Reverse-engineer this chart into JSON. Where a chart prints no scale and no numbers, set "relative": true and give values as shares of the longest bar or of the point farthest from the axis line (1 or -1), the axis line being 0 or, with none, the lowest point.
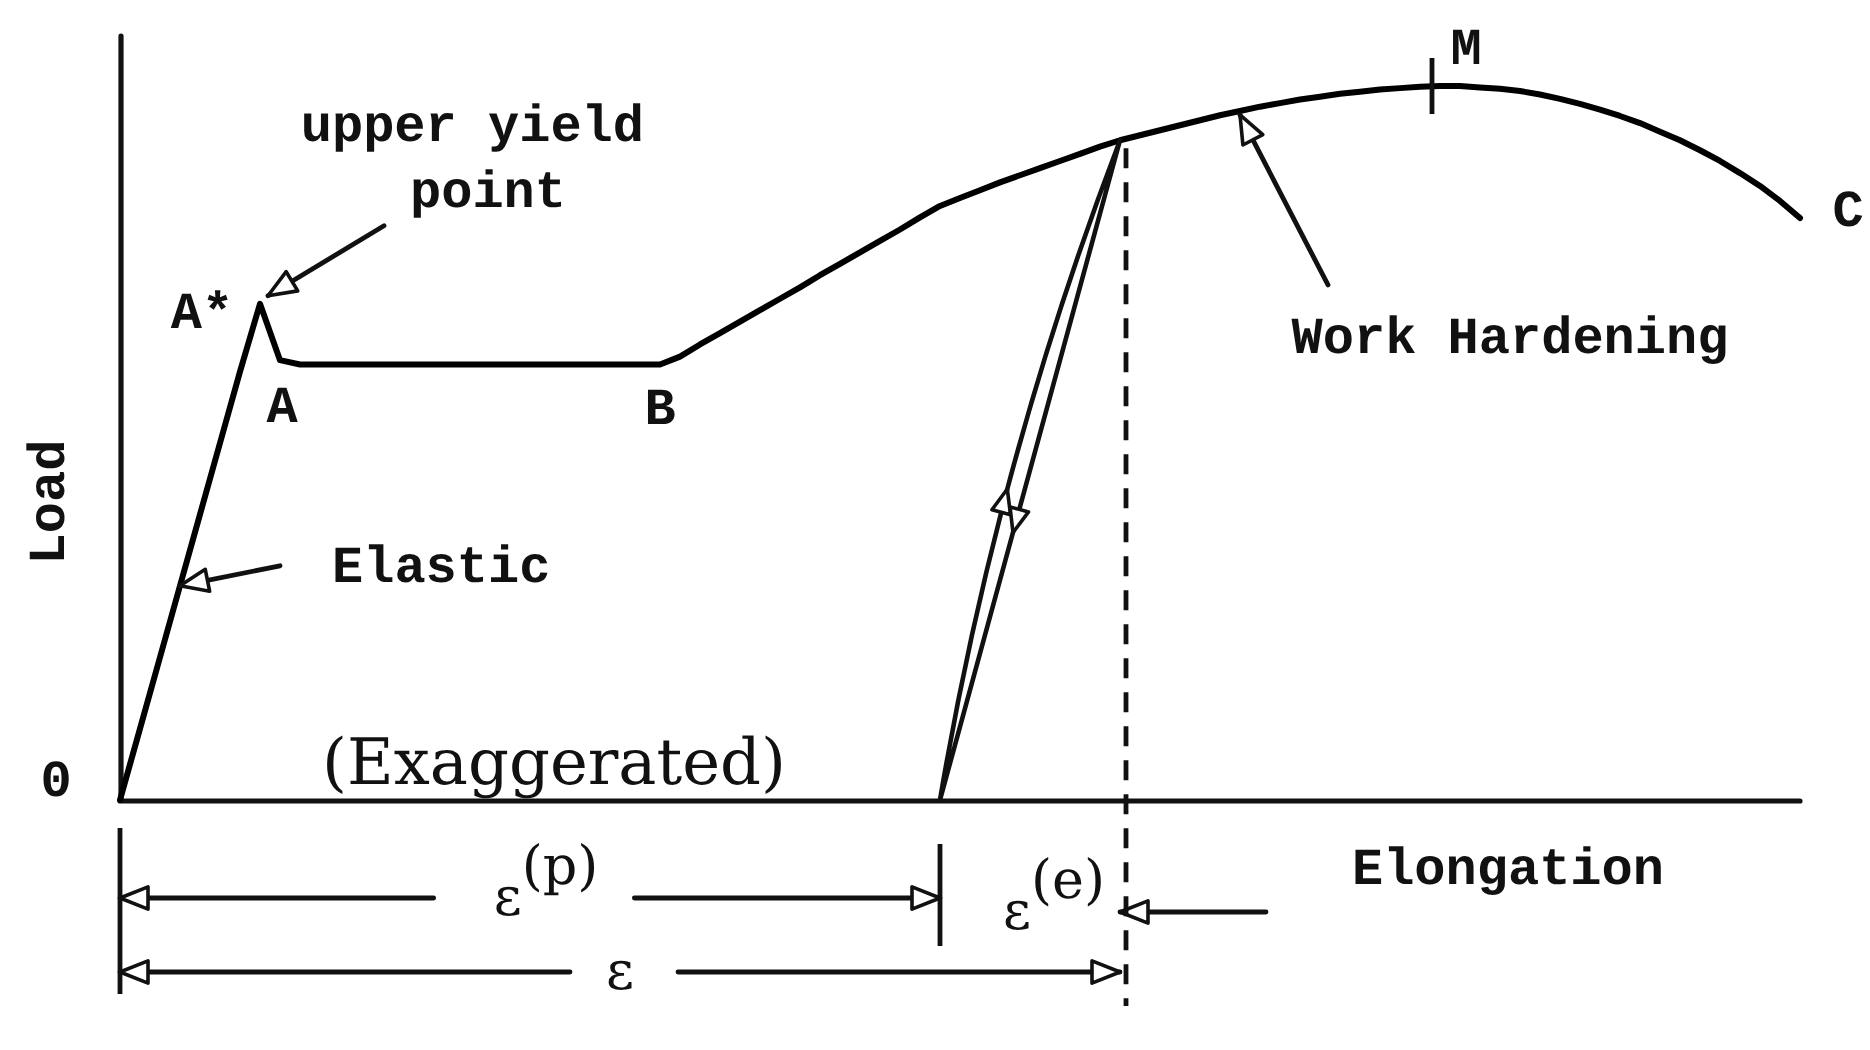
{
  "chart_data": {
    "type": "line",
    "xlabel": "Elongation",
    "ylabel": "Load",
    "relative": true,
    "categories": [
      null,
      null,
      null,
      null,
      null,
      null,
      null,
      null,
      null,
      null,
      null,
      null,
      null,
      null,
      null,
      null,
      null,
      null,
      null,
      null,
      null,
      null,
      null,
      null,
      null,
      null,
      null,
      null,
      null,
      null,
      null,
      null,
      null,
      null,
      null,
      null,
      null,
      null,
      null,
      null,
      null,
      null,
      null,
      null,
      null,
      null,
      null,
      null,
      null,
      null,
      null,
      null,
      null,
      null,
      null,
      null,
      null,
      null,
      null,
      null,
      null,
      null,
      null,
      null,
      null,
      null,
      null,
      null,
      null,
      null,
      null,
      null,
      null,
      null,
      null,
      null,
      null,
      null,
      null,
      null,
      null,
      null,
      null,
      null,
      null
    ],
    "series": [
      {
        "color": "#000000",
        "values": [
          0,
          0.1,
          0.2,
          0.3,
          0.4,
          0.5,
          0.6,
          0.695,
          0.616,
          0.61,
          0.61,
          0.61,
          0.61,
          0.61,
          0.61,
          0.61,
          0.61,
          0.61,
          0.61,
          0.61,
          0.61,
          0.61,
          0.61,
          0.61,
          0.61,
          0.61,
          0.61,
          0.61,
          0.621,
          0.638,
          0.654,
          0.67,
          0.686,
          0.702,
          0.718,
          0.735,
          0.751,
          0.767,
          0.783,
          0.799,
          0.816,
          0.832,
          0.843,
          0.854,
          0.865,
          0.875,
          0.885,
          0.895,
          0.905,
          0.915,
          0.924,
          0.931,
          0.938,
          0.945,
          0.952,
          0.959,
          0.965,
          0.971,
          0.976,
          0.981,
          0.985,
          0.989,
          0.992,
          0.995,
          0.997,
          0.999,
          1,
          1,
          0.998,
          0.996,
          0.993,
          0.988,
          0.982,
          0.975,
          0.967,
          0.958,
          0.948,
          0.936,
          0.924,
          0.91,
          0.895,
          0.878,
          0.86,
          0.839,
          0.815
        ]
      }
    ],
    "annotations": [
      "upper yield point",
      "A*",
      "A",
      "B",
      "M",
      "C",
      "Work Hardening",
      "Elastic",
      "(Exaggerated)",
      "0",
      "ε$^{(p)}$",
      "ε$^{(e)}$",
      "ε"
    ]
  }
}
